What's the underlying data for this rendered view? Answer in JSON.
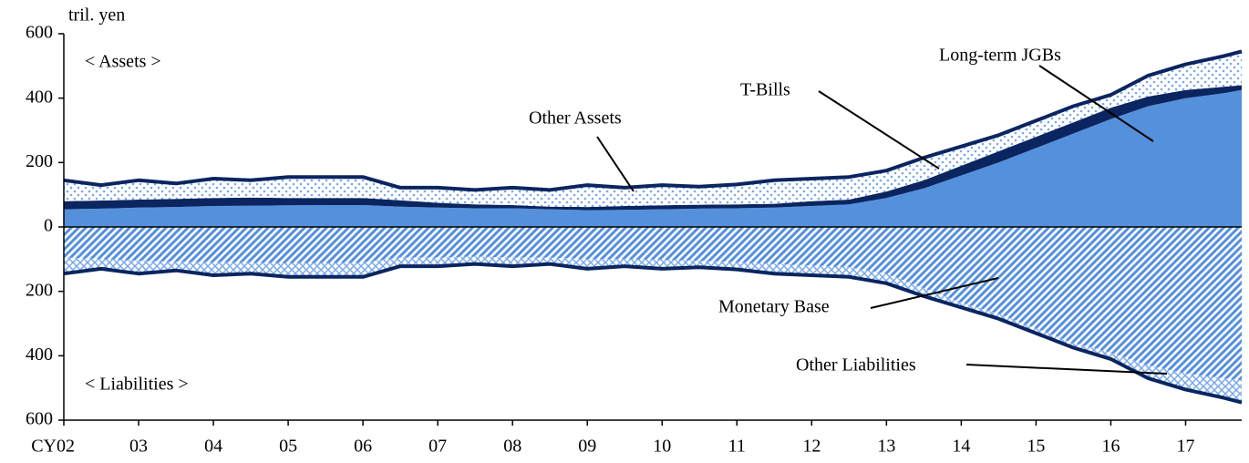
{
  "chart_data": {
    "type": "stacked_area",
    "y_unit_label": "tril. yen",
    "outline_color": "#0a2560",
    "x": [
      2002,
      2002.5,
      2003,
      2003.5,
      2004,
      2004.5,
      2005,
      2005.5,
      2006,
      2006.5,
      2007,
      2007.5,
      2008,
      2008.5,
      2009,
      2009.5,
      2010,
      2010.5,
      2011,
      2011.5,
      2012,
      2012.5,
      2013,
      2013.5,
      2014,
      2014.5,
      2015,
      2015.5,
      2016,
      2016.5,
      2017,
      2017.5,
      2017.75
    ],
    "series": [
      {
        "name": "Long-term JGBs",
        "color": "#5590dc",
        "pattern": "solid",
        "values": [
          55,
          57,
          60,
          62,
          65,
          66,
          67,
          68,
          68,
          63,
          60,
          58,
          58,
          55,
          52,
          53,
          55,
          57,
          58,
          60,
          65,
          70,
          90,
          120,
          160,
          200,
          245,
          290,
          335,
          375,
          400,
          415,
          425
        ]
      },
      {
        "name": "T-Bills",
        "color": "#0a2560",
        "pattern": "solid",
        "values": [
          25,
          25,
          25,
          25,
          25,
          25,
          23,
          22,
          22,
          20,
          15,
          12,
          10,
          8,
          10,
          12,
          12,
          12,
          12,
          12,
          15,
          15,
          20,
          25,
          30,
          35,
          35,
          35,
          35,
          30,
          25,
          20,
          15
        ]
      },
      {
        "name": "Other Assets",
        "color": "#7aa8e8",
        "pattern": "dots",
        "values": [
          65,
          48,
          60,
          48,
          60,
          54,
          65,
          65,
          65,
          39,
          47,
          45,
          54,
          52,
          68,
          57,
          63,
          56,
          62,
          73,
          70,
          70,
          65,
          70,
          60,
          50,
          50,
          50,
          40,
          65,
          80,
          95,
          105
        ]
      },
      {
        "name": "Monetary Base",
        "color": "#5590dc",
        "pattern": "hatch",
        "values": [
          -95,
          -100,
          -105,
          -108,
          -110,
          -110,
          -112,
          -112,
          -110,
          -95,
          -95,
          -92,
          -95,
          -95,
          -100,
          -100,
          -102,
          -105,
          -110,
          -115,
          -120,
          -125,
          -145,
          -190,
          -235,
          -270,
          -315,
          -360,
          -390,
          -430,
          -455,
          -470,
          -475
        ]
      },
      {
        "name": "Other Liabilities",
        "color": "#7aa8e8",
        "pattern": "crosshatch",
        "values": [
          -50,
          -30,
          -40,
          -27,
          -40,
          -35,
          -43,
          -43,
          -45,
          -27,
          -27,
          -23,
          -27,
          -20,
          -30,
          -22,
          -28,
          -20,
          -22,
          -30,
          -30,
          -30,
          -30,
          -25,
          -15,
          -15,
          -15,
          -15,
          -20,
          -40,
          -50,
          -60,
          -70
        ]
      }
    ],
    "xlim": [
      2002,
      2017.75
    ],
    "xticks": [
      {
        "value": 2002,
        "label": "CY02"
      },
      {
        "value": 2003,
        "label": "03"
      },
      {
        "value": 2004,
        "label": "04"
      },
      {
        "value": 2005,
        "label": "05"
      },
      {
        "value": 2006,
        "label": "06"
      },
      {
        "value": 2007,
        "label": "07"
      },
      {
        "value": 2008,
        "label": "08"
      },
      {
        "value": 2009,
        "label": "09"
      },
      {
        "value": 2010,
        "label": "10"
      },
      {
        "value": 2011,
        "label": "11"
      },
      {
        "value": 2012,
        "label": "12"
      },
      {
        "value": 2013,
        "label": "13"
      },
      {
        "value": 2014,
        "label": "14"
      },
      {
        "value": 2015,
        "label": "15"
      },
      {
        "value": 2016,
        "label": "16"
      },
      {
        "value": 2017,
        "label": "17"
      }
    ],
    "ylim": [
      -600,
      600
    ],
    "yticks": [
      {
        "value": -600,
        "label": "600"
      },
      {
        "value": -400,
        "label": "400"
      },
      {
        "value": -200,
        "label": "200"
      },
      0,
      200,
      400,
      600
    ],
    "annotations": {
      "assets": "< Assets >",
      "liabilities": "< Liabilities >",
      "jgb": "Long-term JGBs",
      "tbills": "T-Bills",
      "other_assets": "Other Assets",
      "monetary_base": "Monetary Base",
      "other_liabilities": "Other Liabilities"
    }
  }
}
